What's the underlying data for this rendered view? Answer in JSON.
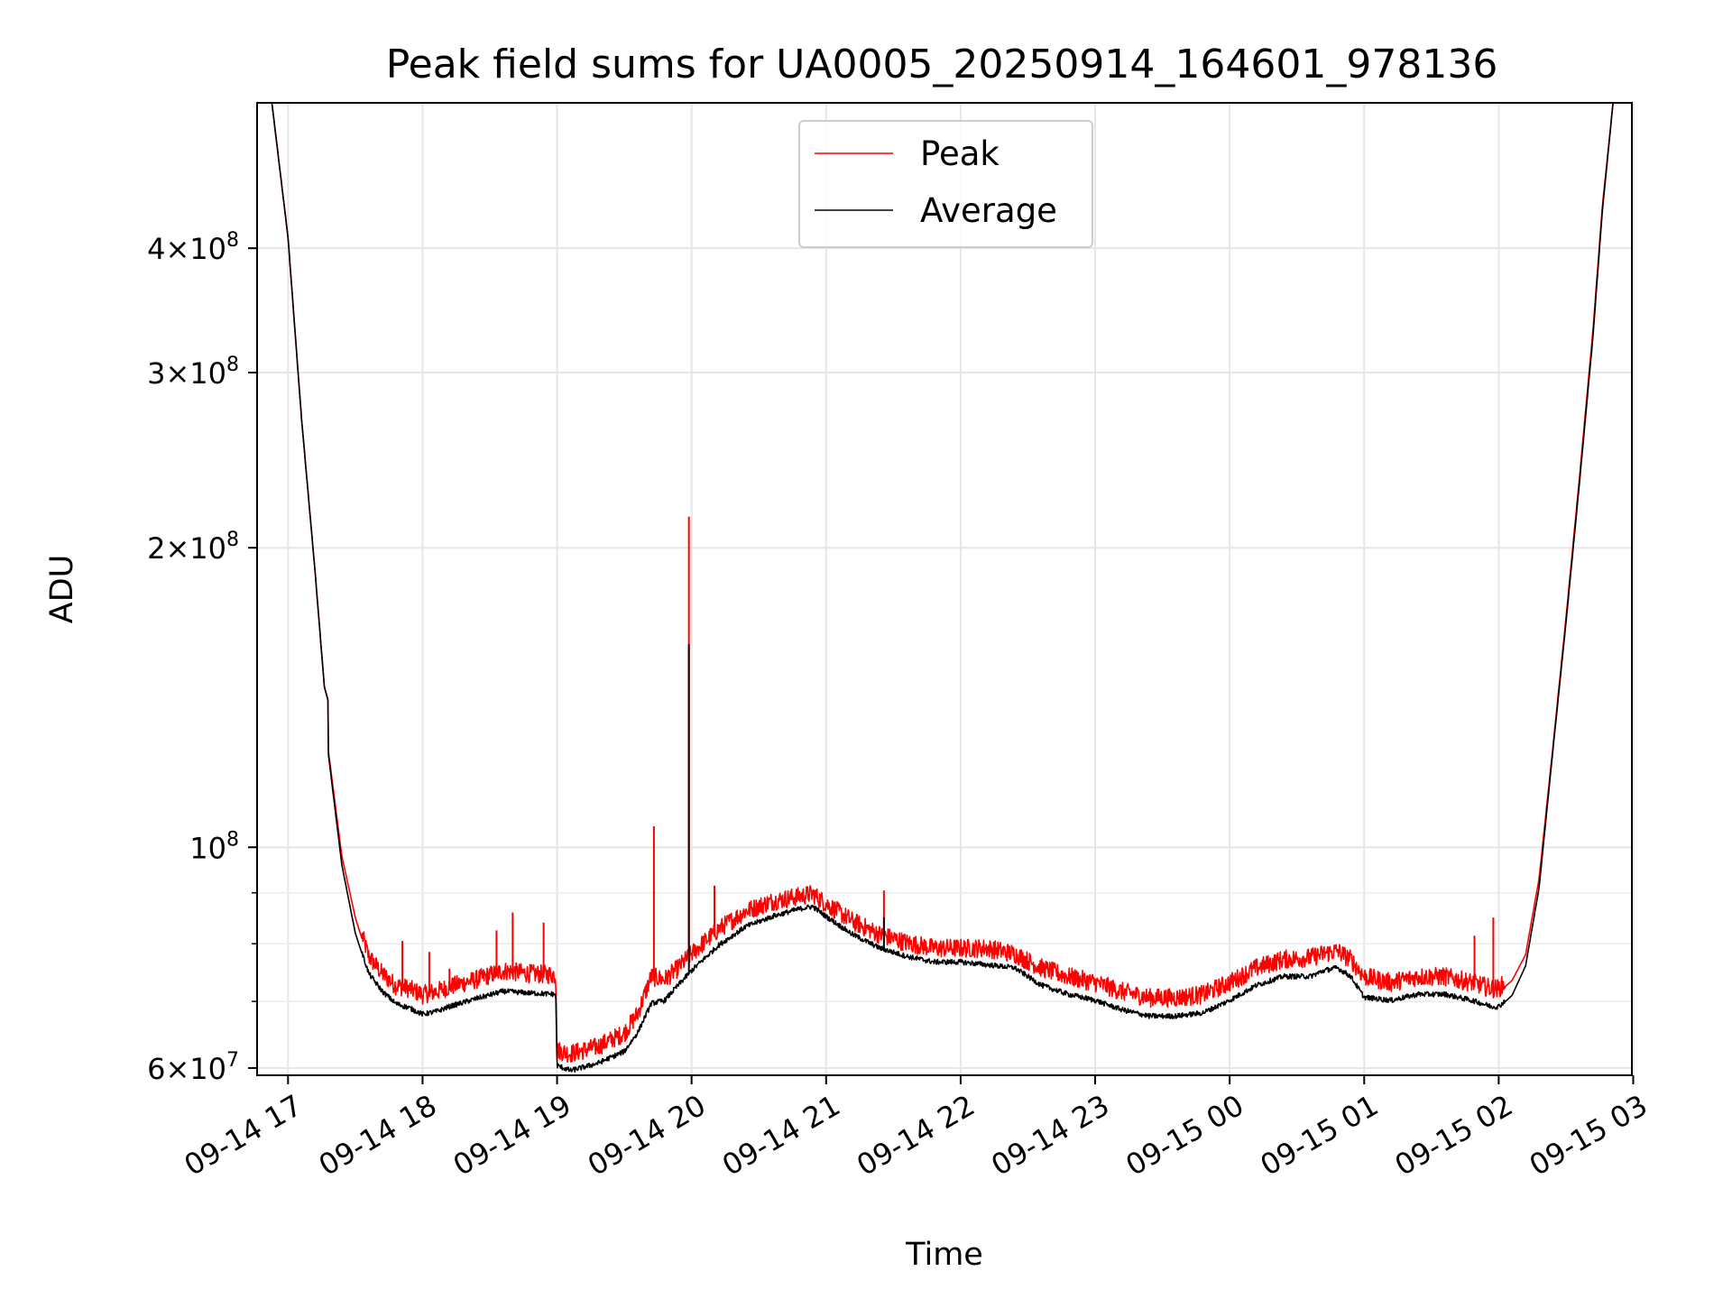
{
  "chart_data": {
    "type": "line",
    "title": "Peak field sums for UA0005_20250914_164601_978136",
    "xlabel": "Time",
    "ylabel": "ADU",
    "yscale": "log",
    "ylim": [
      59000000,
      560000000
    ],
    "xlim_hours": [
      16.77,
      26.99
    ],
    "grid": true,
    "legend_position": "top-center",
    "x_tick_labels": [
      "09-14 17",
      "09-14 18",
      "09-14 19",
      "09-14 20",
      "09-14 21",
      "09-14 22",
      "09-14 23",
      "09-15 00",
      "09-15 01",
      "09-15 02",
      "09-15 03"
    ],
    "x_tick_hours": [
      17,
      18,
      19,
      20,
      21,
      22,
      23,
      24,
      25,
      26,
      27
    ],
    "y_major_ticks": [
      {
        "value": 60000000,
        "mantissa": "6",
        "exponent": "7"
      },
      {
        "value": 100000000,
        "mantissa": "",
        "exponent": "8"
      },
      {
        "value": 200000000,
        "mantissa": "2",
        "exponent": "8"
      },
      {
        "value": 300000000,
        "mantissa": "3",
        "exponent": "8"
      },
      {
        "value": 400000000,
        "mantissa": "4",
        "exponent": "8"
      }
    ],
    "y_minor_ticks": [
      70000000,
      80000000,
      90000000
    ],
    "series": [
      {
        "name": "Peak",
        "color": "#ff0000",
        "x_hours": [
          16.77,
          16.88,
          17.0,
          17.1,
          17.2,
          17.27,
          17.3,
          17.3,
          17.4,
          17.5,
          17.6,
          17.7,
          17.8,
          17.9,
          18.0,
          18.1,
          18.2,
          18.4,
          18.6,
          18.8,
          18.99,
          19.0,
          19.1,
          19.3,
          19.5,
          19.6,
          19.7,
          19.8,
          19.9,
          20.0,
          20.2,
          20.4,
          20.6,
          20.8,
          20.9,
          21.0,
          21.2,
          21.4,
          21.6,
          21.8,
          22.0,
          22.2,
          22.4,
          22.6,
          22.8,
          23.0,
          23.2,
          23.4,
          23.6,
          23.8,
          24.0,
          24.2,
          24.4,
          24.6,
          24.7,
          24.8,
          24.9,
          25.0,
          25.2,
          25.4,
          25.6,
          25.8,
          25.95,
          26.0,
          26.1,
          26.2,
          26.3,
          26.4,
          26.5,
          26.6,
          26.7,
          26.77,
          26.85,
          26.99
        ],
        "y_values": [
          560000000,
          560000000,
          410000000,
          270000000,
          190000000,
          145000000,
          140000000,
          125000000,
          98000000,
          85000000,
          77000000,
          74000000,
          72000000,
          71500000,
          70500000,
          71000000,
          71800000,
          73000000,
          74500000,
          74000000,
          73800000,
          62000000,
          61500000,
          62500000,
          64500000,
          67500000,
          73500000,
          73000000,
          75000000,
          77500000,
          82000000,
          85500000,
          87500000,
          88500000,
          89000000,
          87000000,
          83500000,
          81000000,
          79500000,
          78500000,
          78500000,
          78500000,
          77500000,
          75000000,
          73500000,
          72500000,
          71000000,
          70000000,
          70000000,
          70500000,
          72500000,
          75000000,
          76500000,
          76800000,
          77500000,
          78000000,
          76500000,
          73500000,
          72500000,
          73500000,
          73500000,
          72500000,
          71500000,
          71500000,
          73500000,
          78000000,
          93000000,
          125000000,
          170000000,
          235000000,
          330000000,
          440000000,
          560000000,
          560000000
        ]
      },
      {
        "name": "Average",
        "color": "#000000",
        "x_hours": [
          16.77,
          16.88,
          17.0,
          17.1,
          17.2,
          17.27,
          17.3,
          17.3,
          17.4,
          17.5,
          17.6,
          17.7,
          17.8,
          17.9,
          18.0,
          18.1,
          18.2,
          18.4,
          18.6,
          18.8,
          18.99,
          19.0,
          19.1,
          19.3,
          19.5,
          19.6,
          19.7,
          19.8,
          19.9,
          20.0,
          20.2,
          20.4,
          20.6,
          20.8,
          20.9,
          21.0,
          21.2,
          21.4,
          21.6,
          21.8,
          22.0,
          22.2,
          22.4,
          22.6,
          22.8,
          23.0,
          23.2,
          23.4,
          23.6,
          23.8,
          24.0,
          24.2,
          24.4,
          24.6,
          24.7,
          24.8,
          24.9,
          25.0,
          25.2,
          25.4,
          25.6,
          25.8,
          25.95,
          26.0,
          26.1,
          26.2,
          26.3,
          26.4,
          26.5,
          26.6,
          26.7,
          26.77,
          26.85,
          26.99
        ],
        "y_values": [
          560000000,
          560000000,
          410000000,
          270000000,
          190000000,
          145000000,
          140000000,
          124000000,
          96000000,
          82000000,
          74500000,
          71500000,
          69500000,
          68800000,
          67800000,
          68200000,
          69000000,
          70300000,
          71500000,
          71200000,
          71000000,
          60200000,
          59500000,
          60500000,
          62200000,
          65000000,
          69500000,
          70000000,
          72500000,
          75000000,
          79500000,
          83000000,
          85000000,
          86500000,
          87000000,
          85000000,
          81500000,
          79000000,
          77500000,
          76500000,
          76500000,
          76000000,
          75500000,
          72500000,
          71000000,
          70000000,
          68500000,
          67500000,
          67500000,
          68000000,
          70000000,
          72500000,
          74000000,
          74000000,
          75000000,
          75500000,
          74000000,
          70500000,
          70000000,
          71000000,
          71000000,
          70000000,
          69000000,
          69000000,
          71000000,
          76000000,
          91000000,
          124000000,
          168000000,
          232000000,
          325000000,
          435000000,
          560000000,
          560000000
        ]
      }
    ],
    "spikes": [
      {
        "series": "Peak",
        "x_hour": 17.85,
        "y": 80500000
      },
      {
        "series": "Peak",
        "x_hour": 18.05,
        "y": 78500000
      },
      {
        "series": "Peak",
        "x_hour": 18.2,
        "y": 75500000
      },
      {
        "series": "Peak",
        "x_hour": 18.55,
        "y": 82500000
      },
      {
        "series": "Peak",
        "x_hour": 18.67,
        "y": 86000000
      },
      {
        "series": "Peak",
        "x_hour": 18.9,
        "y": 84000000
      },
      {
        "series": "Peak",
        "x_hour": 19.72,
        "y": 105000000
      },
      {
        "series": "Peak",
        "x_hour": 19.98,
        "y": 215000000
      },
      {
        "series": "Average",
        "x_hour": 19.98,
        "y": 160000000
      },
      {
        "series": "Peak",
        "x_hour": 20.17,
        "y": 91500000
      },
      {
        "series": "Peak",
        "x_hour": 21.43,
        "y": 90500000
      },
      {
        "series": "Average",
        "x_hour": 21.43,
        "y": 85000000
      },
      {
        "series": "Peak",
        "x_hour": 25.82,
        "y": 81500000
      },
      {
        "series": "Peak",
        "x_hour": 25.96,
        "y": 85000000
      }
    ]
  }
}
